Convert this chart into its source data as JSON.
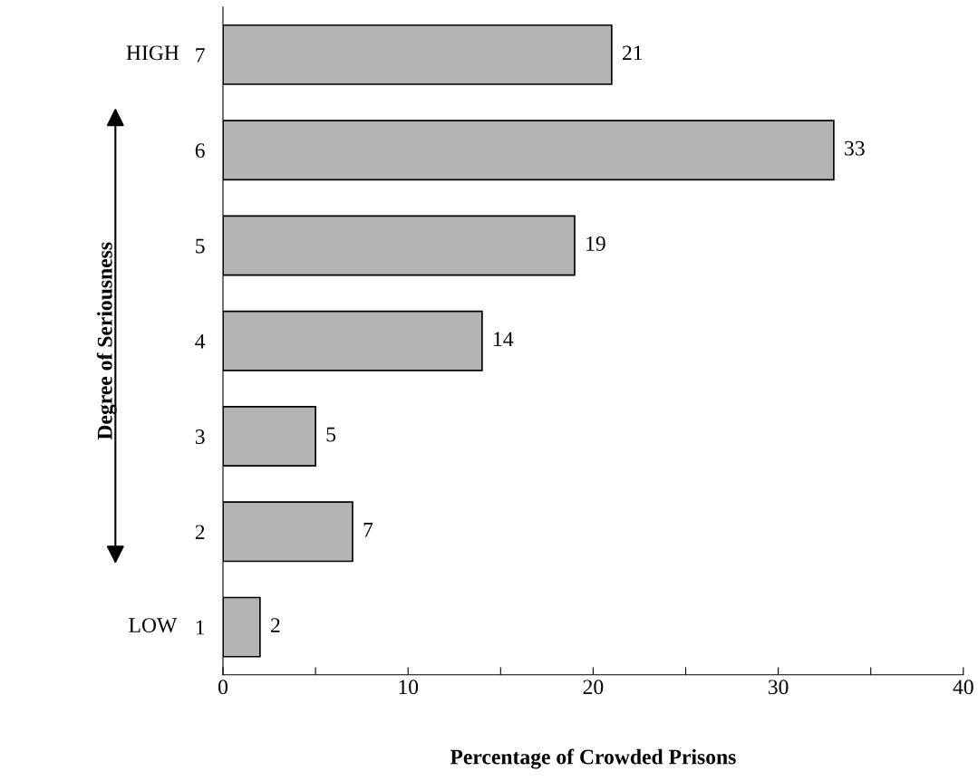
{
  "chart_data": {
    "type": "bar",
    "orientation": "horizontal",
    "categories": [
      "7",
      "6",
      "5",
      "4",
      "3",
      "2",
      "1"
    ],
    "values": [
      21,
      33,
      19,
      14,
      5,
      7,
      2
    ],
    "color": "#b4b4b4",
    "xlim": [
      0,
      40
    ],
    "xticks": [
      0,
      {
        "value": 5,
        "label": null
      },
      10,
      {
        "value": 15,
        "label": null
      },
      20,
      {
        "value": 25,
        "label": null
      },
      30,
      {
        "value": 35,
        "label": null
      },
      40
    ],
    "xlabel": "Percentage of Crowded Prisons",
    "ylabel": "Degree of Seriousness",
    "annotations": [
      "HIGH",
      "LOW"
    ],
    "data_labels": true,
    "grid": false,
    "legend": false
  }
}
